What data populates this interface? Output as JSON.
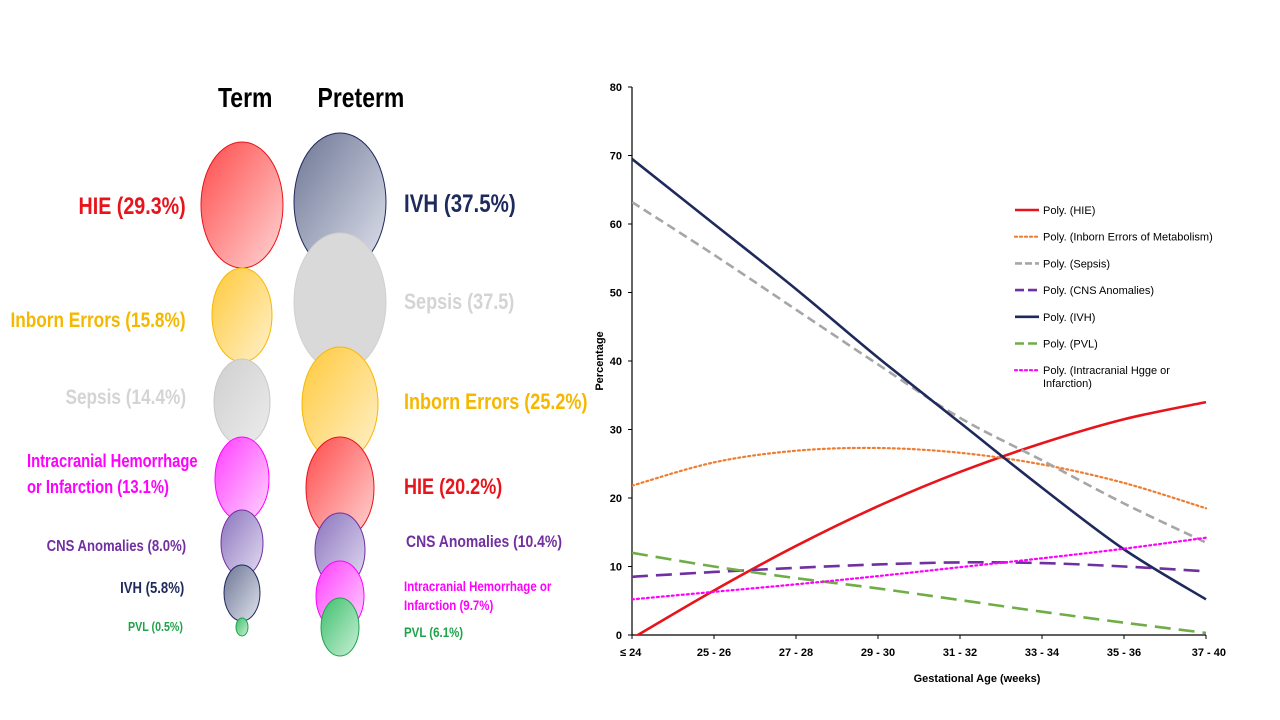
{
  "bubble_panel": {
    "term_title": "Term",
    "preterm_title": "Preterm",
    "term": [
      {
        "label": "HIE (29.3%)",
        "value": 29.3,
        "color": "#ff6b6b",
        "text_color": "#e8141b"
      },
      {
        "label": "Inborn Errors (15.8%)",
        "value": 15.8,
        "color": "#ffd77a",
        "text_color": "#f5b800"
      },
      {
        "label": "Sepsis (14.4%)",
        "value": 14.4,
        "color": "#d6d6d6",
        "text_color": "#d4d4d4"
      },
      {
        "label": "Intracranial Hemorrhage",
        "label2": "or Infarction (13.1%)",
        "value": 13.1,
        "color": "#ff66ff",
        "text_color": "#ff00ff"
      },
      {
        "label": "CNS Anomalies (8.0%)",
        "value": 8.0,
        "color": "#9d86c9",
        "text_color": "#7030a0"
      },
      {
        "label": "IVH (5.8%)",
        "value": 5.8,
        "color": "#7e87a3",
        "text_color": "#1f2a5c"
      },
      {
        "label": "PVL (0.5%)",
        "value": 0.5,
        "color": "#66d18f",
        "text_color": "#1fa34a"
      }
    ],
    "preterm": [
      {
        "label": "IVH (37.5%)",
        "value": 37.5,
        "color": "#8e94b5",
        "text_color": "#1f2a5c"
      },
      {
        "label": "Sepsis  (37.5)",
        "value": 37.5,
        "color": "#d6d6d6",
        "text_color": "#d4d4d4"
      },
      {
        "label": "Inborn Errors  (25.2%)",
        "value": 25.2,
        "color": "#ffd77a",
        "text_color": "#f5b800"
      },
      {
        "label": "HIE (20.2%)",
        "value": 20.2,
        "color": "#ff6b6b",
        "text_color": "#e8141b"
      },
      {
        "label": "CNS Anomalies (10.4%)",
        "value": 10.4,
        "color": "#9d86c9",
        "text_color": "#7030a0"
      },
      {
        "label": "Intracranial Hemorrhage or",
        "label2": "Infarction (9.7%)",
        "value": 9.7,
        "color": "#ff66ff",
        "text_color": "#ff00ff"
      },
      {
        "label": "PVL (6.1%)",
        "value": 6.1,
        "color": "#66d18f",
        "text_color": "#1fa34a"
      }
    ]
  },
  "chart_data": {
    "type": "line",
    "xlabel": "Gestational Age (weeks)",
    "ylabel": "Percentage",
    "ylim": [
      0,
      80
    ],
    "yticks": [
      0,
      10,
      20,
      30,
      40,
      50,
      60,
      70,
      80
    ],
    "categories": [
      "≤ 24",
      "25 - 26",
      "27 - 28",
      "29 - 30",
      "31 - 32",
      "33 - 34",
      "35 - 36",
      "37 - 40"
    ],
    "grid": false,
    "legend_position": "top-right",
    "series": [
      {
        "name": "Poly. (HIE)",
        "color": "#e8141b",
        "dash": "solid",
        "values": [
          -0.5,
          6.5,
          13,
          18.8,
          23.8,
          28,
          31.5,
          34
        ]
      },
      {
        "name": "Poly. (Inborn Errors of Metabolism)",
        "color": "#ed7d31",
        "dash": "dotted",
        "values": [
          21.8,
          25.2,
          26.9,
          27.3,
          26.6,
          24.9,
          22.2,
          18.5
        ]
      },
      {
        "name": "Poly. (Sepsis)",
        "color": "#a6a6a6",
        "dash": "dashed",
        "values": [
          63.2,
          55.5,
          47.5,
          39.5,
          31.7,
          25.5,
          19.2,
          13.5
        ]
      },
      {
        "name": "Poly. (CNS Anomalies)",
        "color": "#7030a0",
        "dash": "longdash",
        "values": [
          8.5,
          9.2,
          9.8,
          10.3,
          10.6,
          10.5,
          10,
          9.3
        ]
      },
      {
        "name": "Poly. (IVH)",
        "color": "#1f2a5c",
        "dash": "solid",
        "values": [
          69.5,
          60,
          50.5,
          40.5,
          31,
          21.5,
          12.5,
          5.2
        ]
      },
      {
        "name": "Poly. (PVL)",
        "color": "#70ad47",
        "dash": "longdash",
        "values": [
          12,
          10,
          8.3,
          6.8,
          5.1,
          3.4,
          1.8,
          0.3
        ]
      },
      {
        "name": "Poly. (Intracranial Hgge or",
        "name2": "Infarction)",
        "color": "#ff00ff",
        "dash": "dotted",
        "values": [
          5.2,
          6.3,
          7.4,
          8.6,
          9.9,
          11.2,
          12.6,
          14.2
        ]
      }
    ]
  }
}
